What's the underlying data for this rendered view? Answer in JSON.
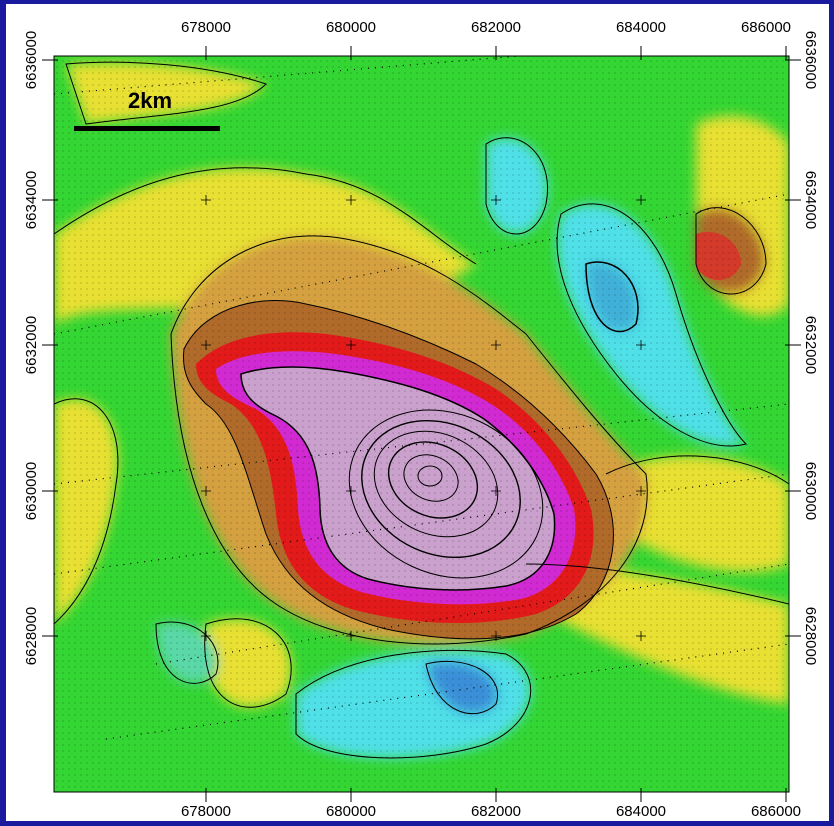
{
  "map": {
    "scale_bar_label": "2km",
    "easting_ticks_top": [
      "678000",
      "680000",
      "682000",
      "684000",
      "686000"
    ],
    "easting_ticks_bottom": [
      "678000",
      "680000",
      "682000",
      "684000",
      "686000"
    ],
    "northing_ticks_left": [
      "6636000",
      "6634000",
      "6632000",
      "6630000",
      "6628000"
    ],
    "northing_ticks_right": [
      "6636000",
      "6634000",
      "6632000",
      "6630000",
      "6628000"
    ],
    "colors": {
      "frame": "#1a1a9e",
      "low": "#4fc3f7",
      "mid": "#33d633",
      "high_yellow": "#e8e030",
      "high_orange": "#d4a040",
      "brown": "#b06a2a",
      "red": "#e31a1a",
      "magenta": "#d22ad2",
      "peak": "#caa0cc"
    }
  }
}
